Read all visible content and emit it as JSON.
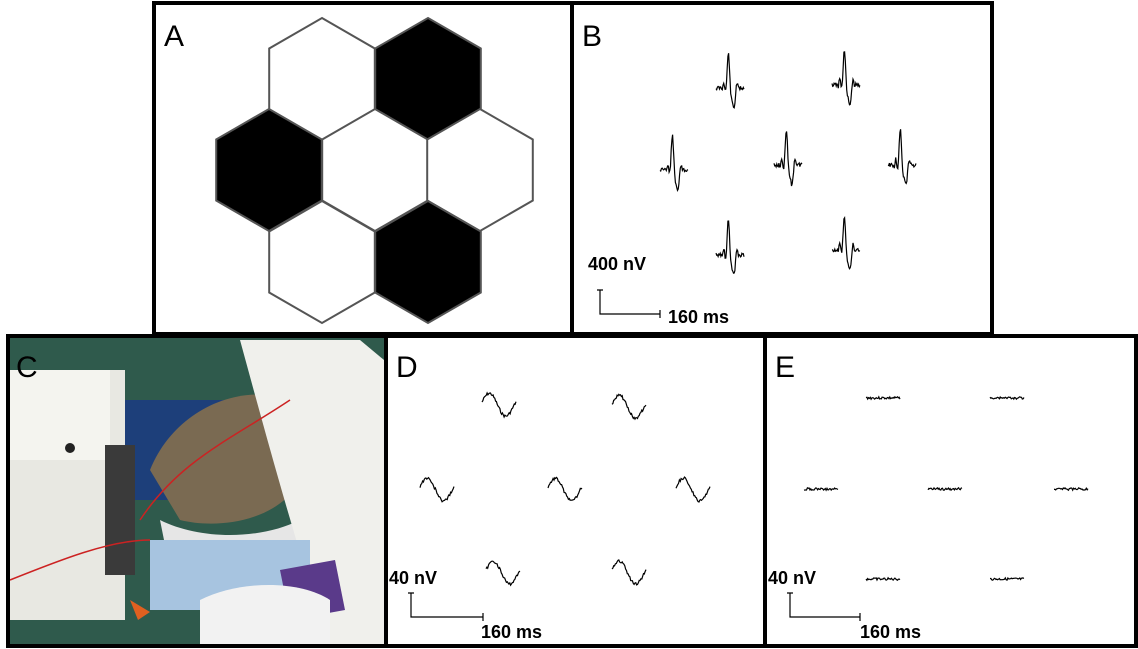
{
  "panels": [
    {
      "label": "A"
    },
    {
      "label": "B",
      "amplitude_scale": "400 nV",
      "time_scale": "160 ms"
    },
    {
      "label": "C"
    },
    {
      "label": "D",
      "amplitude_scale": "40 nV",
      "time_scale": "160 ms"
    },
    {
      "label": "E",
      "amplitude_scale": "40 nV",
      "time_scale": "160 ms"
    }
  ]
}
